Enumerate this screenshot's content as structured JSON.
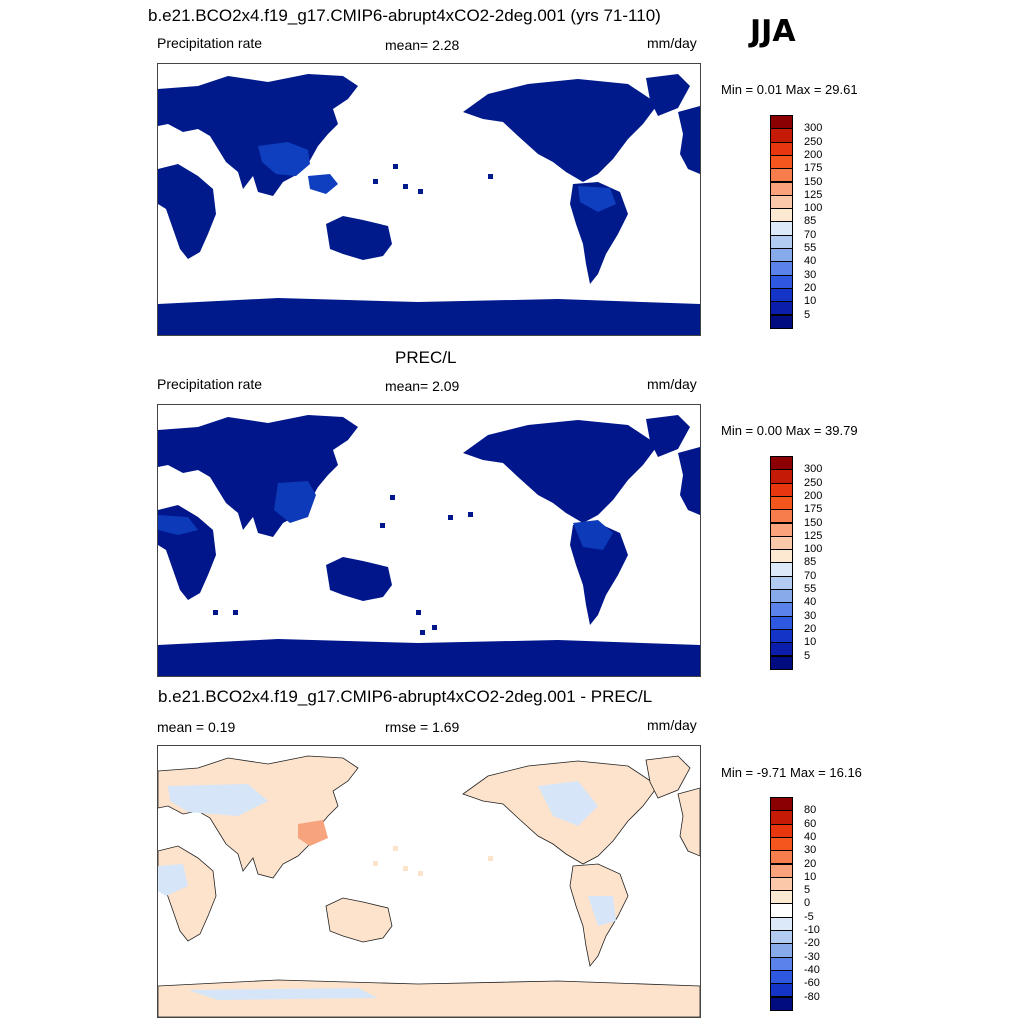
{
  "season": "JJA",
  "panels": [
    {
      "title": "b.e21.BCO2x4.f19_g17.CMIP6-abrupt4xCO2-2deg.001 (yrs 71-110)",
      "left_label": "Precipitation rate",
      "center_label": "mean=   2.28",
      "units": "mm/day",
      "minmax": "Min =   0.01 Max =  29.61",
      "map_kind": "model",
      "colorbar_key": "prec"
    },
    {
      "title": "PREC/L",
      "left_label": "Precipitation rate",
      "center_label": "mean=   2.09",
      "units": "mm/day",
      "minmax": "Min =   0.00 Max =  39.79",
      "map_kind": "obs",
      "colorbar_key": "prec"
    },
    {
      "title": "b.e21.BCO2x4.f19_g17.CMIP6-abrupt4xCO2-2deg.001 - PREC/L",
      "left_label": "mean =   0.19",
      "center_label": "rmse =   1.69",
      "units": "mm/day",
      "minmax": "Min =  -9.71 Max =  16.16",
      "map_kind": "diff",
      "colorbar_key": "diff"
    }
  ],
  "colorbars": {
    "prec": {
      "labels": [
        "300",
        "250",
        "200",
        "175",
        "150",
        "125",
        "100",
        "85",
        "70",
        "55",
        "40",
        "30",
        "20",
        "10",
        "5"
      ],
      "colors": [
        "#8b0000",
        "#c41a06",
        "#e8360e",
        "#f5561e",
        "#f77d4d",
        "#f9a27c",
        "#fcc8aa",
        "#fde8d2",
        "#dbe9f8",
        "#b2cbf1",
        "#87aaeb",
        "#5a82e8",
        "#2e58e0",
        "#1434c8",
        "#0a1eab",
        "#000c80"
      ]
    },
    "diff": {
      "labels": [
        "80",
        "60",
        "40",
        "30",
        "20",
        "10",
        "5",
        "0",
        "-5",
        "-10",
        "-20",
        "-30",
        "-40",
        "-60",
        "-80"
      ],
      "colors": [
        "#8b0000",
        "#c41a06",
        "#e8360e",
        "#f5561e",
        "#f77d4d",
        "#f9a27c",
        "#fcc8aa",
        "#fde8d2",
        "#ffffff",
        "#dbe9f8",
        "#b2cbf1",
        "#87aaeb",
        "#5a82e8",
        "#2e58e0",
        "#1434c8",
        "#000c80"
      ]
    }
  },
  "map_colors": {
    "model_land": "#001a8c",
    "model_wet": "#0f3fbf",
    "obs_land": "#00168a",
    "obs_wet": "#0d3ab8",
    "diff_pos": "#fde3cc",
    "diff_neg": "#d6e6f8",
    "diff_hot": "#f7a47e",
    "coast": "#222222"
  }
}
